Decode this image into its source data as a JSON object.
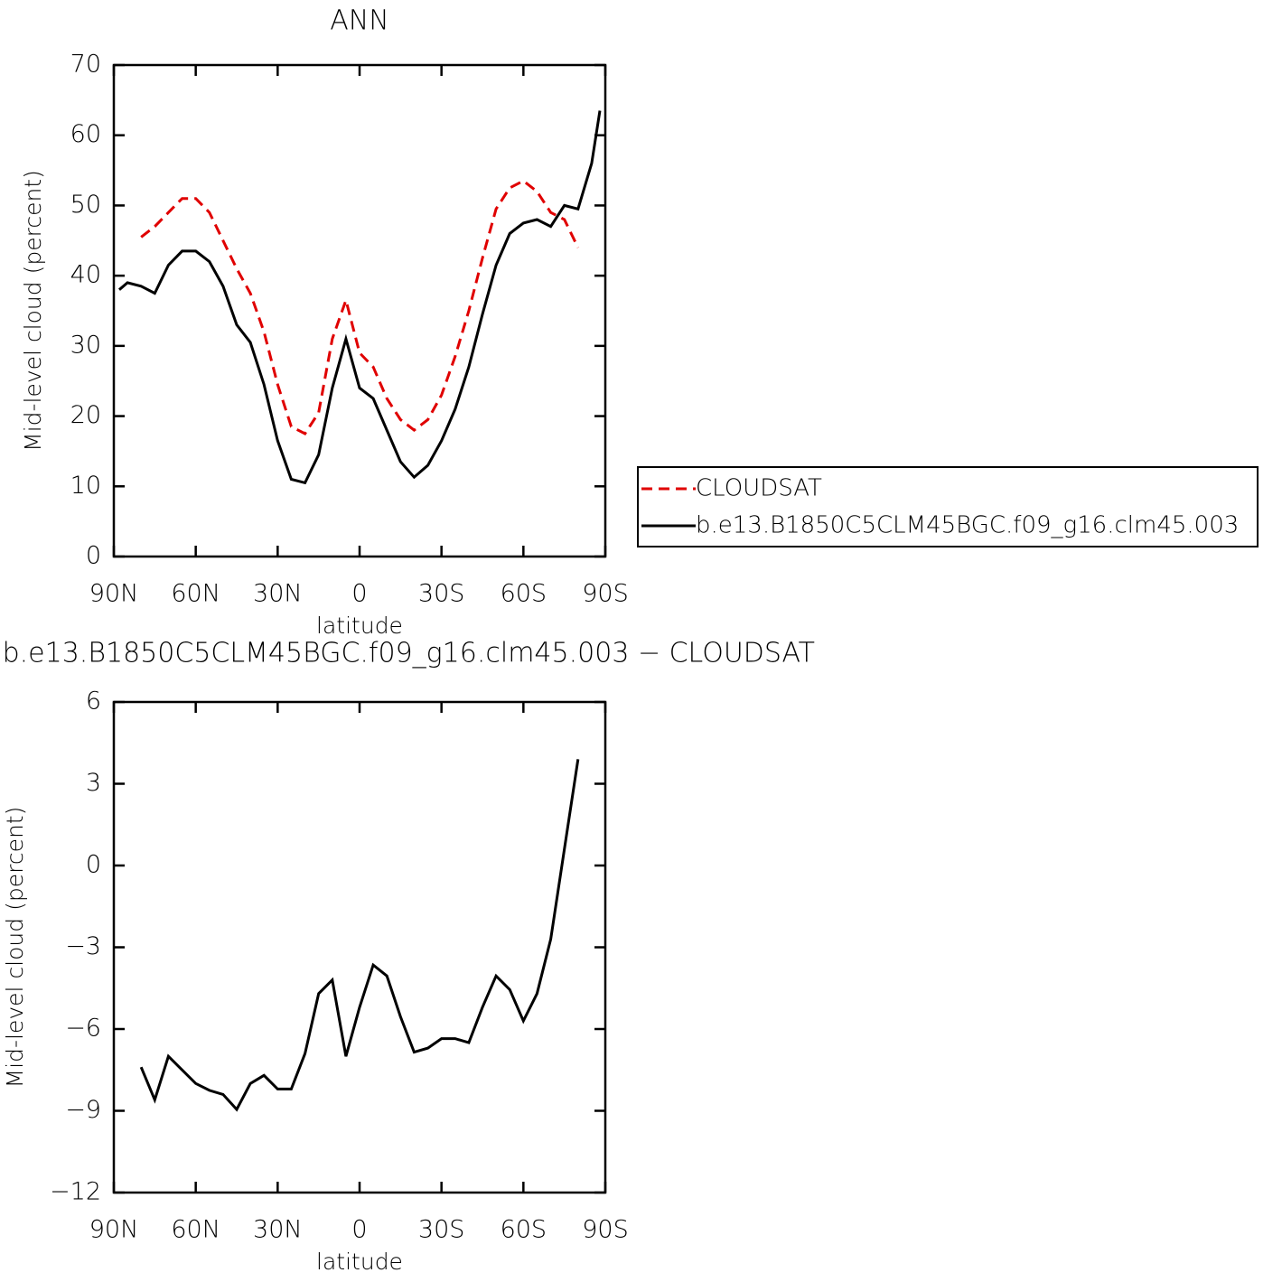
{
  "chart_data": [
    {
      "type": "line",
      "title": "ANN",
      "xlabel": "latitude",
      "ylabel": "Mid-level cloud (percent)",
      "x": [
        88,
        85,
        80,
        75,
        70,
        65,
        60,
        55,
        50,
        45,
        40,
        35,
        30,
        25,
        20,
        15,
        10,
        5,
        0,
        -5,
        -10,
        -15,
        -20,
        -25,
        -30,
        -35,
        -40,
        -45,
        -50,
        -55,
        -60,
        -65,
        -70,
        -75,
        -80,
        -85,
        -88
      ],
      "series": [
        {
          "name": "CLOUDSAT",
          "color": "#e00000",
          "dashed": true,
          "values": [
            null,
            null,
            45.5,
            47,
            49,
            51,
            51,
            49,
            45,
            41,
            37.5,
            32,
            24.5,
            18.5,
            17.5,
            20.5,
            31,
            36.5,
            29,
            27,
            22.5,
            19.5,
            18,
            19.5,
            23,
            28.5,
            35,
            42.5,
            49.5,
            52.5,
            53.5,
            52,
            49,
            48,
            44,
            null,
            null
          ]
        },
        {
          "name": "b.e13.B1850C5CLM45BGC.f09_g16.clm45.003",
          "color": "#000000",
          "dashed": false,
          "values": [
            38,
            39,
            38.5,
            37.5,
            41.5,
            43.5,
            43.5,
            42,
            38.5,
            33,
            30.5,
            24.5,
            16.5,
            11,
            10.5,
            14.5,
            24,
            31,
            24,
            22.5,
            18,
            13.5,
            11.3,
            13,
            16.5,
            21,
            27,
            34.5,
            41.5,
            46,
            47.5,
            48,
            47,
            50,
            49.5,
            56,
            63.5
          ]
        }
      ],
      "xlim": [
        90,
        -90
      ],
      "xticks": [
        {
          "value": 90,
          "label": "90N"
        },
        {
          "value": 60,
          "label": "60N"
        },
        {
          "value": 30,
          "label": "30N"
        },
        0,
        {
          "value": -30,
          "label": "30S"
        },
        {
          "value": -60,
          "label": "60S"
        },
        {
          "value": -90,
          "label": "90S"
        }
      ],
      "ylim": [
        0,
        70
      ],
      "yticks": [
        0,
        10,
        20,
        30,
        40,
        50,
        60,
        70
      ],
      "legend": "right"
    },
    {
      "type": "line",
      "title": "b.e13.B1850C5CLM45BGC.f09_g16.clm45.003 − CLOUDSAT",
      "xlabel": "latitude",
      "ylabel": "Mid-level cloud (percent)",
      "x": [
        80,
        75,
        70,
        65,
        60,
        55,
        50,
        45,
        40,
        35,
        30,
        25,
        20,
        15,
        10,
        5,
        0,
        -5,
        -10,
        -15,
        -20,
        -25,
        -30,
        -35,
        -40,
        -45,
        -50,
        -55,
        -60,
        -65,
        -70,
        -75,
        -80
      ],
      "series": [
        {
          "color": "#000000",
          "dashed": false,
          "values": [
            -7.4,
            -8.6,
            -7.0,
            -7.5,
            -8.0,
            -8.25,
            -8.4,
            -8.95,
            -8.0,
            -7.7,
            -8.2,
            -8.2,
            -6.9,
            -4.7,
            -4.2,
            -7.0,
            -5.2,
            -3.65,
            -4.05,
            -5.55,
            -6.85,
            -6.7,
            -6.35,
            -6.35,
            -6.5,
            -5.2,
            -4.05,
            -4.55,
            -5.7,
            -4.7,
            -2.7,
            0.6,
            3.9
          ]
        }
      ],
      "xlim": [
        90,
        -90
      ],
      "xticks": [
        {
          "value": 90,
          "label": "90N"
        },
        {
          "value": 60,
          "label": "60N"
        },
        {
          "value": 30,
          "label": "30N"
        },
        0,
        {
          "value": -30,
          "label": "30S"
        },
        {
          "value": -60,
          "label": "60S"
        },
        {
          "value": -90,
          "label": "90S"
        }
      ],
      "ylim": [
        -12,
        6
      ],
      "yticks": [
        -12,
        -9,
        -6,
        -3,
        0,
        3,
        6
      ]
    }
  ]
}
